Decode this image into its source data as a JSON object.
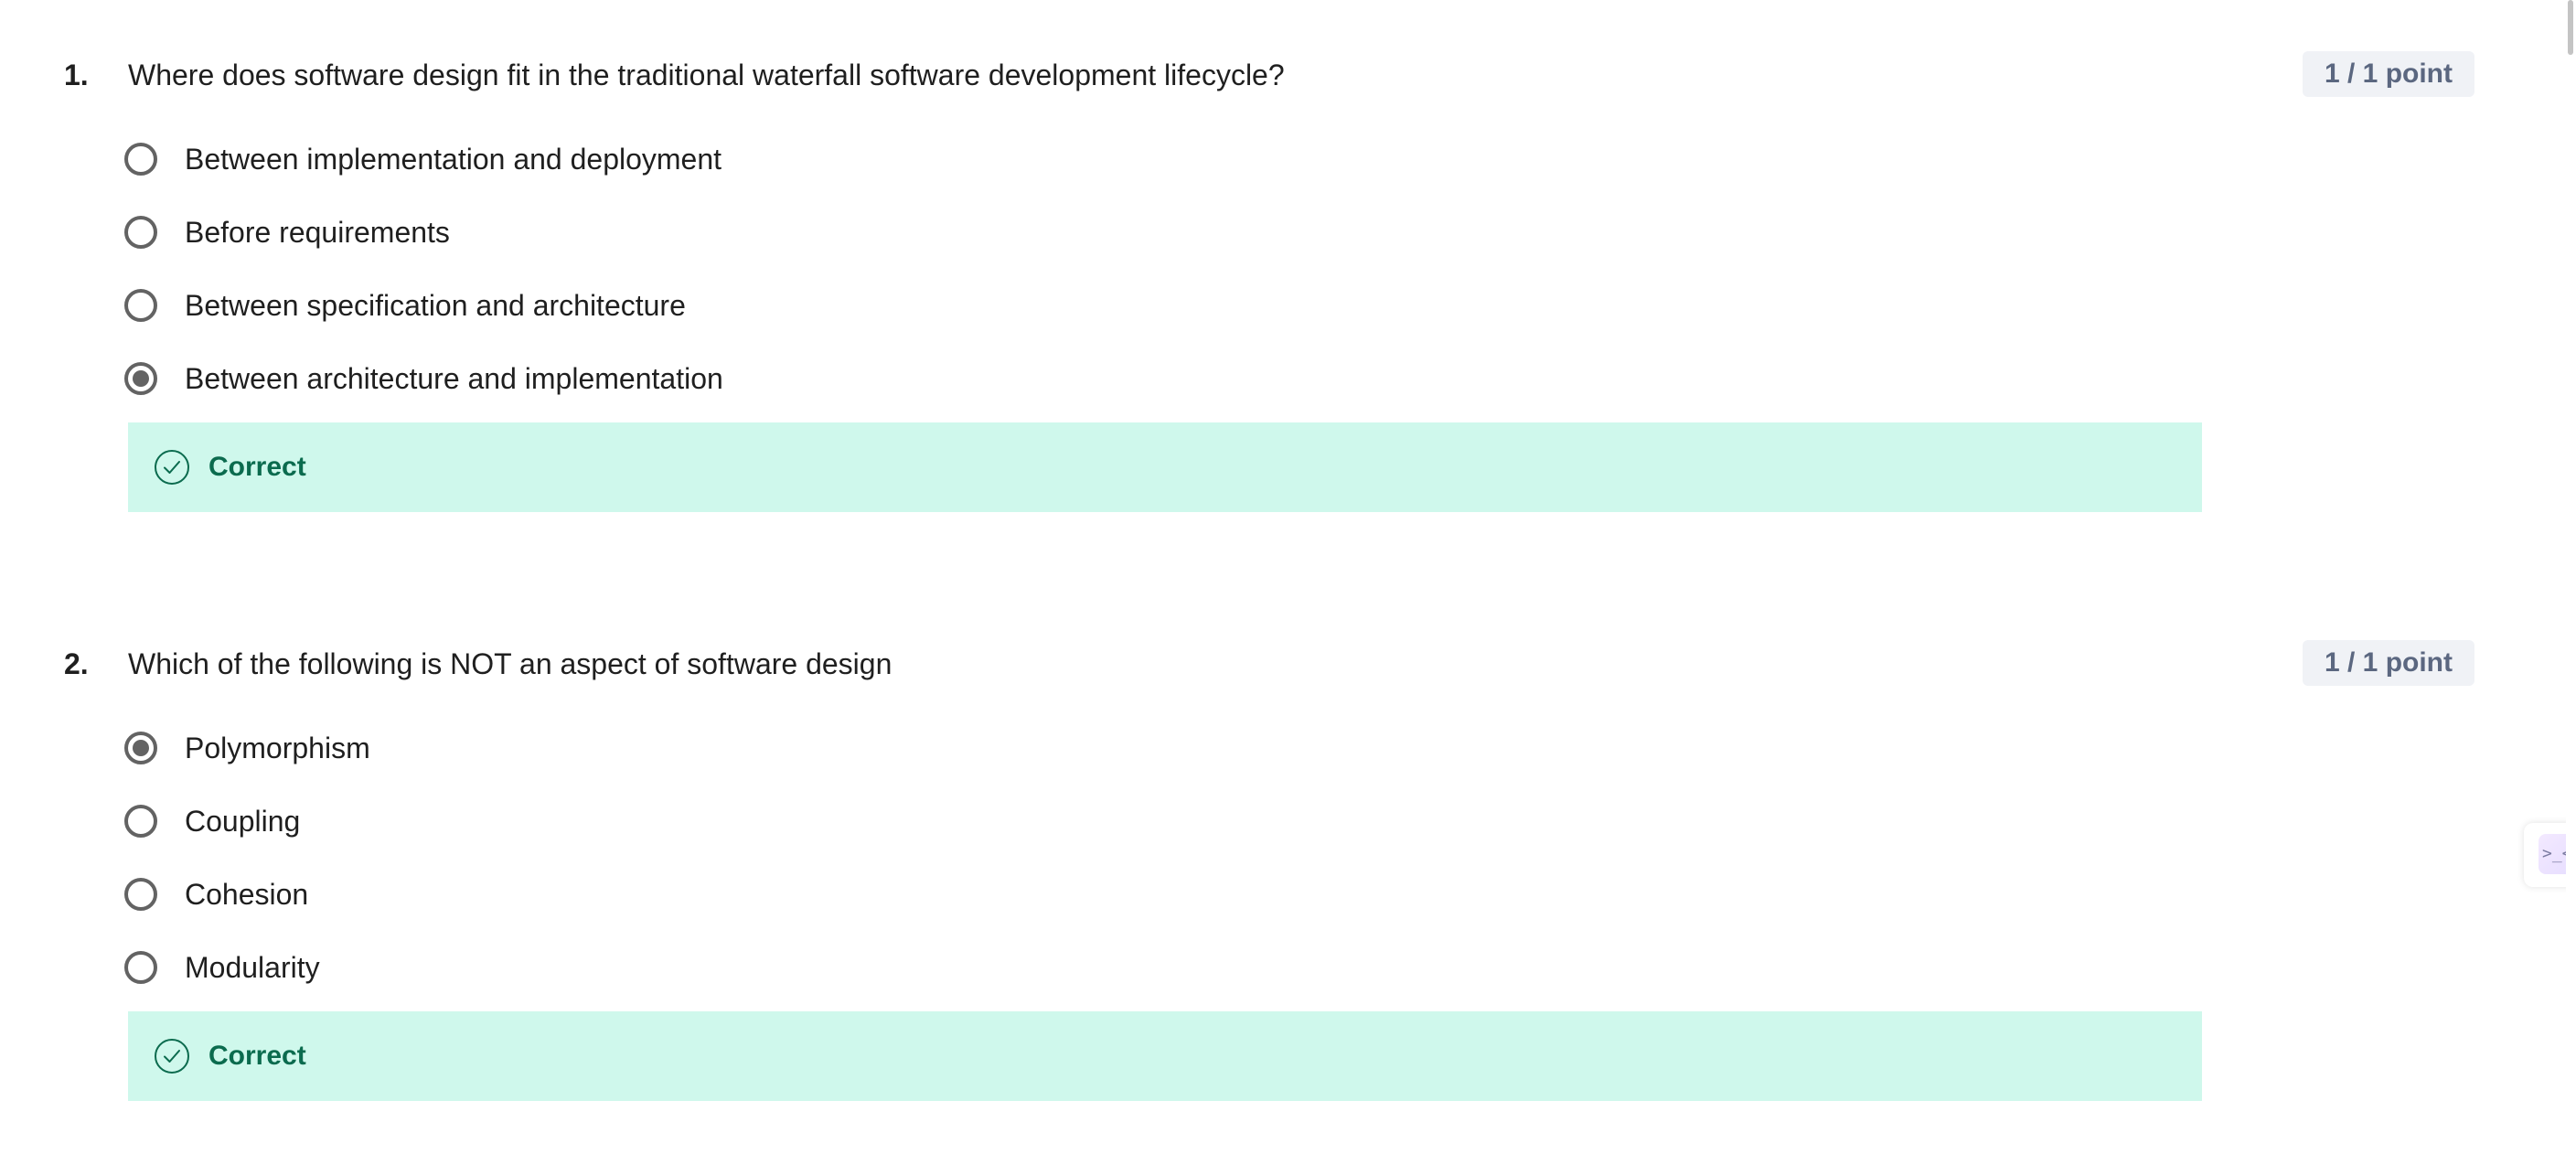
{
  "questions": [
    {
      "number": "1.",
      "text": "Where does software design fit in the traditional waterfall software development lifecycle?",
      "points": "1 / 1 point",
      "options": [
        {
          "label": "Between implementation and deployment",
          "selected": false
        },
        {
          "label": "Before requirements",
          "selected": false
        },
        {
          "label": "Between specification and architecture",
          "selected": false
        },
        {
          "label": "Between architecture and implementation",
          "selected": true
        }
      ],
      "feedback": "Correct"
    },
    {
      "number": "2.",
      "text": "Which of the following is NOT an aspect of software design",
      "points": "1 / 1 point",
      "options": [
        {
          "label": "Polymorphism",
          "selected": true
        },
        {
          "label": "Coupling",
          "selected": false
        },
        {
          "label": "Cohesion",
          "selected": false
        },
        {
          "label": "Modularity",
          "selected": false
        }
      ],
      "feedback": "Correct"
    }
  ],
  "side_widget": {
    "icon": "coach-icon"
  },
  "colors": {
    "feedback_bg": "#cff8ec",
    "feedback_text": "#0b6b4e",
    "badge_bg": "#f0f2f6",
    "badge_text": "#5b6780",
    "radio": "#636363"
  }
}
